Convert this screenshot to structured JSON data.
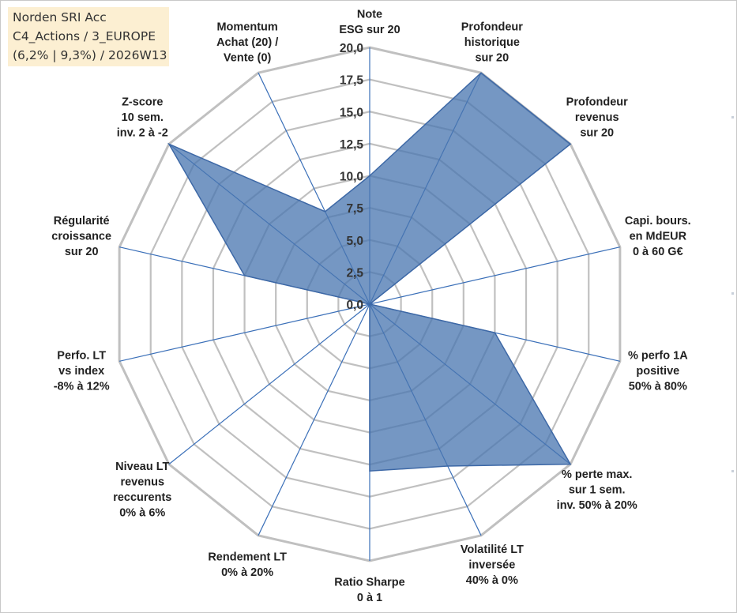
{
  "info_box": {
    "line1": "Norden SRI Acc",
    "line2": "C4_Actions / 3_EUROPE",
    "line3": "(6,2% | 9,3%) / 2026W13"
  },
  "colors": {
    "grid": "#c0c0c0",
    "spokes": "#3a6fb8",
    "fill": "#4a76b0",
    "stroke": "#3d68a6"
  },
  "chart_data": {
    "type": "radar",
    "range": [
      0,
      20
    ],
    "grid_levels": 8,
    "tick_labels": [
      "0,0",
      "2,5",
      "5,0",
      "7,5",
      "10,0",
      "12,5",
      "15,0",
      "17,5",
      "20,0"
    ],
    "axes": [
      {
        "label": [
          "Note",
          "ESG sur 20"
        ],
        "value": 10.0
      },
      {
        "label": [
          "Profondeur",
          "historique",
          "sur 20"
        ],
        "value": 20.0
      },
      {
        "label": [
          "Profondeur",
          "revenus",
          "sur 20"
        ],
        "value": 20.0
      },
      {
        "label": [
          "Capi. bours.",
          "en MdEUR",
          "0 à 60 G€"
        ],
        "value": 0.0
      },
      {
        "label": [
          "% perfo 1A",
          "positive",
          "50% à 80%"
        ],
        "value": 10.0
      },
      {
        "label": [
          "% perte max.",
          "sur 1 sem.",
          "inv. 50% à 20%"
        ],
        "value": 20.0
      },
      {
        "label": [
          "Volatilité LT",
          "inversée",
          "40% à 0%"
        ],
        "value": 14.0
      },
      {
        "label": [
          "Ratio Sharpe",
          "0 à 1"
        ],
        "value": 13.0
      },
      {
        "label": [
          "Rendement LT",
          "0% à 20%"
        ],
        "value": 0.0
      },
      {
        "label": [
          "Niveau LT",
          "revenus",
          "reccurents",
          "0% à 6%"
        ],
        "value": 0.0
      },
      {
        "label": [
          "Perfo. LT",
          "vs index",
          "-8% à 12%"
        ],
        "value": 0.0
      },
      {
        "label": [
          "Régularité",
          "croissance",
          "sur 20"
        ],
        "value": 10.0
      },
      {
        "label": [
          "Z-score",
          "10 sem.",
          "inv. 2 à -2"
        ],
        "value": 20.0
      },
      {
        "label": [
          "Momentum",
          "Achat (20) /",
          "Vente (0)"
        ],
        "value": 8.0
      }
    ]
  }
}
